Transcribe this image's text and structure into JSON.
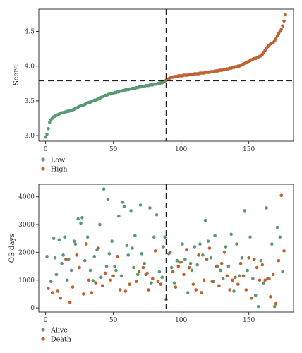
{
  "chart_data": [
    {
      "type": "scatter",
      "ylabel": "Score",
      "xlim": [
        -5,
        183
      ],
      "ylim": [
        2.92,
        4.82
      ],
      "xticks": [
        0,
        50,
        100,
        150
      ],
      "yticks": [
        3.0,
        3.5,
        4.0,
        4.5
      ],
      "ytick_labels": [
        "3.0",
        "3.5",
        "4.0",
        "4.5"
      ],
      "cutoff_x": 89,
      "cutoff_y": 3.79,
      "legend_position": "bottom-left",
      "series": [
        {
          "name": "Low",
          "color": "#5a9a73",
          "x": [
            0,
            1,
            2,
            3,
            4,
            5,
            6,
            7,
            8,
            9,
            10,
            11,
            12,
            13,
            14,
            15,
            16,
            17,
            18,
            19,
            20,
            21,
            22,
            23,
            24,
            25,
            26,
            27,
            28,
            29,
            30,
            31,
            32,
            33,
            34,
            35,
            36,
            37,
            38,
            39,
            40,
            41,
            42,
            43,
            44,
            45,
            46,
            47,
            48,
            49,
            50,
            51,
            52,
            53,
            54,
            55,
            56,
            57,
            58,
            59,
            60,
            61,
            62,
            63,
            64,
            65,
            66,
            67,
            68,
            69,
            70,
            71,
            72,
            73,
            74,
            75,
            76,
            77,
            78,
            79,
            80,
            81,
            82,
            83,
            84,
            85,
            86,
            87,
            88
          ],
          "y": [
            2.98,
            3.02,
            3.1,
            3.19,
            3.23,
            3.25,
            3.27,
            3.28,
            3.29,
            3.3,
            3.31,
            3.32,
            3.33,
            3.33,
            3.34,
            3.34,
            3.35,
            3.35,
            3.36,
            3.36,
            3.37,
            3.38,
            3.39,
            3.4,
            3.41,
            3.42,
            3.43,
            3.43,
            3.44,
            3.45,
            3.46,
            3.47,
            3.48,
            3.48,
            3.49,
            3.5,
            3.51,
            3.51,
            3.52,
            3.53,
            3.54,
            3.55,
            3.56,
            3.57,
            3.58,
            3.58,
            3.59,
            3.6,
            3.6,
            3.61,
            3.61,
            3.62,
            3.62,
            3.63,
            3.63,
            3.64,
            3.64,
            3.65,
            3.65,
            3.66,
            3.66,
            3.66,
            3.67,
            3.67,
            3.68,
            3.68,
            3.68,
            3.69,
            3.69,
            3.7,
            3.7,
            3.71,
            3.71,
            3.71,
            3.72,
            3.72,
            3.72,
            3.73,
            3.73,
            3.73,
            3.74,
            3.74,
            3.74,
            3.75,
            3.75,
            3.76,
            3.76,
            3.77,
            3.78
          ]
        },
        {
          "name": "High",
          "color": "#c0612f",
          "x": [
            89,
            90,
            91,
            92,
            93,
            94,
            95,
            96,
            97,
            98,
            99,
            100,
            101,
            102,
            103,
            104,
            105,
            106,
            107,
            108,
            109,
            110,
            111,
            112,
            113,
            114,
            115,
            116,
            117,
            118,
            119,
            120,
            121,
            122,
            123,
            124,
            125,
            126,
            127,
            128,
            129,
            130,
            131,
            132,
            133,
            134,
            135,
            136,
            137,
            138,
            139,
            140,
            141,
            142,
            143,
            144,
            145,
            146,
            147,
            148,
            149,
            150,
            151,
            152,
            153,
            154,
            155,
            156,
            157,
            158,
            159,
            160,
            161,
            162,
            163,
            164,
            165,
            166,
            167,
            168,
            169,
            170,
            171,
            172,
            173,
            174,
            175,
            176,
            177
          ],
          "y": [
            3.8,
            3.81,
            3.82,
            3.83,
            3.84,
            3.84,
            3.85,
            3.85,
            3.85,
            3.86,
            3.86,
            3.86,
            3.86,
            3.87,
            3.87,
            3.87,
            3.87,
            3.88,
            3.88,
            3.88,
            3.88,
            3.89,
            3.89,
            3.89,
            3.89,
            3.9,
            3.9,
            3.9,
            3.9,
            3.91,
            3.91,
            3.91,
            3.91,
            3.92,
            3.92,
            3.92,
            3.93,
            3.93,
            3.93,
            3.94,
            3.94,
            3.94,
            3.95,
            3.95,
            3.95,
            3.96,
            3.96,
            3.97,
            3.97,
            3.98,
            3.98,
            3.99,
            3.99,
            4.0,
            4.0,
            4.01,
            4.02,
            4.03,
            4.04,
            4.05,
            4.06,
            4.07,
            4.08,
            4.09,
            4.1,
            4.11,
            4.11,
            4.12,
            4.13,
            4.14,
            4.15,
            4.17,
            4.2,
            4.23,
            4.26,
            4.28,
            4.3,
            4.32,
            4.33,
            4.34,
            4.36,
            4.39,
            4.43,
            4.47,
            4.5,
            4.53,
            4.58,
            4.65,
            4.74
          ]
        }
      ]
    },
    {
      "type": "scatter",
      "ylabel": "OS days",
      "xlim": [
        -5,
        183
      ],
      "ylim": [
        -150,
        4450
      ],
      "xticks": [
        0,
        50,
        100,
        150
      ],
      "yticks": [
        0,
        1000,
        2000,
        3000,
        4000
      ],
      "ytick_labels": [
        "0",
        "1000",
        "2000",
        "3000",
        "4000"
      ],
      "cutoff_x": 89,
      "legend_position": "bottom-left",
      "series": [
        {
          "name": "Alive",
          "color": "#5a9a73",
          "x": [
            1,
            4,
            6,
            7,
            8,
            10,
            12,
            13,
            14,
            16,
            17,
            19,
            21,
            22,
            24,
            26,
            27,
            29,
            31,
            33,
            35,
            36,
            38,
            40,
            41,
            43,
            45,
            46,
            47,
            49,
            51,
            52,
            54,
            56,
            57,
            58,
            60,
            61,
            63,
            64,
            65,
            66,
            68,
            70,
            71,
            73,
            75,
            77,
            78,
            80,
            82,
            84,
            86,
            87,
            88,
            91,
            93,
            95,
            97,
            99,
            101,
            103,
            105,
            107,
            108,
            110,
            112,
            114,
            116,
            118,
            120,
            122,
            124,
            125,
            127,
            129,
            131,
            133,
            135,
            137,
            139,
            141,
            143,
            145,
            147,
            149,
            151,
            153,
            155,
            157,
            159,
            161,
            163,
            165,
            167,
            169,
            171,
            173,
            175
          ],
          "y": [
            1850,
            950,
            2500,
            1800,
            1200,
            2450,
            1600,
            1900,
            2550,
            1000,
            1750,
            1350,
            2400,
            2300,
            3200,
            3050,
            3250,
            1700,
            2550,
            1350,
            980,
            1850,
            2100,
            3000,
            1100,
            4280,
            1500,
            3900,
            1950,
            2400,
            1500,
            1350,
            3300,
            1150,
            3800,
            3650,
            2250,
            1900,
            3500,
            2150,
            1450,
            2600,
            1200,
            3700,
            1950,
            1600,
            1250,
            3600,
            900,
            2550,
            3350,
            1300,
            1100,
            2200,
            2550,
            1950,
            1450,
            900,
            1700,
            1650,
            2300,
            1750,
            550,
            1600,
            1350,
            2200,
            1550,
            2300,
            1900,
            3150,
            2400,
            1800,
            950,
            2600,
            1500,
            1350,
            1050,
            2200,
            1500,
            2650,
            600,
            2300,
            1150,
            1800,
            3500,
            1350,
            2550,
            1050,
            450,
            50,
            1700,
            900,
            3600,
            1050,
            2300,
            50,
            2900,
            2550,
            1300
          ]
        },
        {
          "name": "Death",
          "color": "#c0612f",
          "x": [
            2,
            5,
            9,
            11,
            15,
            18,
            20,
            23,
            25,
            28,
            30,
            32,
            34,
            37,
            39,
            42,
            44,
            48,
            50,
            53,
            55,
            59,
            62,
            67,
            69,
            72,
            74,
            76,
            79,
            81,
            83,
            85,
            89,
            92,
            94,
            96,
            98,
            100,
            102,
            104,
            106,
            109,
            111,
            113,
            115,
            117,
            119,
            121,
            123,
            126,
            128,
            130,
            132,
            134,
            136,
            138,
            140,
            142,
            144,
            146,
            148,
            150,
            152,
            154,
            156,
            158,
            160,
            162,
            164,
            166,
            168,
            170,
            172,
            174,
            176
          ],
          "y": [
            700,
            550,
            600,
            350,
            1750,
            200,
            750,
            1900,
            1450,
            500,
            2300,
            1000,
            550,
            900,
            2150,
            800,
            1250,
            1000,
            1150,
            1850,
            650,
            600,
            850,
            950,
            1300,
            1450,
            1200,
            650,
            1050,
            2050,
            950,
            850,
            300,
            2000,
            1300,
            750,
            1500,
            1650,
            1200,
            2100,
            1450,
            850,
            650,
            1900,
            550,
            1000,
            1750,
            2150,
            950,
            1500,
            800,
            1600,
            2000,
            1150,
            650,
            1000,
            1100,
            850,
            1600,
            1150,
            650,
            1800,
            350,
            1750,
            1450,
            1000,
            1550,
            1000,
            1050,
            400,
            1200,
            150,
            1700,
            4050,
            2050
          ]
        }
      ]
    }
  ]
}
